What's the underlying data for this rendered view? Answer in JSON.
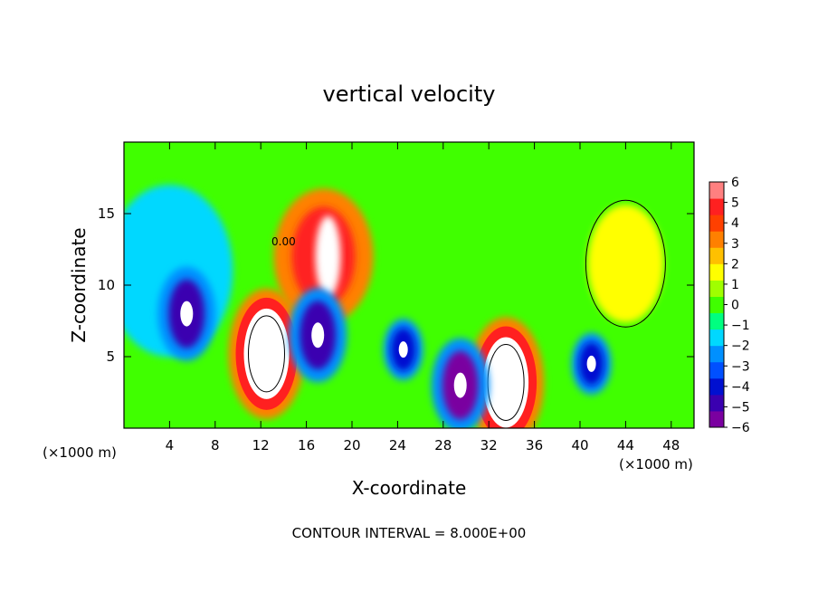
{
  "chart_data": {
    "type": "heatmap",
    "title": "vertical velocity",
    "xlabel": "X-coordinate",
    "ylabel": "Z-coordinate",
    "x_unit": "(×1000 m)",
    "x_unit_right": "(×1000 m)",
    "footer": "CONTOUR INTERVAL = 8.000E+00",
    "contour_label": "0.00",
    "xlim": [
      0,
      50
    ],
    "ylim": [
      0,
      20
    ],
    "x_ticks": [
      "4",
      "8",
      "12",
      "16",
      "20",
      "24",
      "28",
      "32",
      "36",
      "40",
      "44",
      "48"
    ],
    "y_ticks": [
      "5",
      "10",
      "15"
    ],
    "colorbar": {
      "labels": [
        "6",
        "5",
        "4",
        "3",
        "2",
        "1",
        "0",
        "−1",
        "−2",
        "−3",
        "−4",
        "−5",
        "−6"
      ],
      "range": [
        -6,
        6
      ],
      "colors": [
        "#7a00a0",
        "#3a00b0",
        "#0010d0",
        "#0050ff",
        "#0090ff",
        "#00d8ff",
        "#00ff80",
        "#40ff00",
        "#a0ff00",
        "#ffff00",
        "#ffc000",
        "#ff8000",
        "#ff4000",
        "#ff2020",
        "#ff8080"
      ]
    },
    "features": [
      {
        "name": "updraft-core",
        "x": 12.5,
        "z": 5.2,
        "w": 8
      },
      {
        "name": "updraft-core",
        "x": 33.5,
        "z": 3.2,
        "w": 7
      },
      {
        "name": "updraft-tower",
        "x": 17.5,
        "z": 12,
        "w": 6
      },
      {
        "name": "downdraft",
        "x": 5.5,
        "z": 8,
        "w": -5
      },
      {
        "name": "downdraft",
        "x": 17,
        "z": 6.5,
        "w": -5
      },
      {
        "name": "downdraft",
        "x": 24.5,
        "z": 5.5,
        "w": -4
      },
      {
        "name": "downdraft",
        "x": 29.5,
        "z": 3,
        "w": -6
      },
      {
        "name": "downdraft",
        "x": 41,
        "z": 4.5,
        "w": -4
      },
      {
        "name": "weak-updraft",
        "x": 44,
        "z": 11.5,
        "w": 1.5
      }
    ]
  }
}
